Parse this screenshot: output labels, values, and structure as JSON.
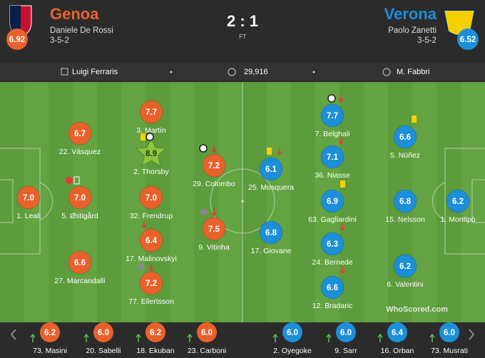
{
  "header": {
    "score": "2 : 1",
    "status": "FT",
    "home": {
      "name": "Genoa",
      "manager": "Daniele De Rossi",
      "formation": "3-5-2",
      "rating": "6.92"
    },
    "away": {
      "name": "Verona",
      "manager": "Paolo Zanetti",
      "formation": "3-5-2",
      "rating": "6.52"
    }
  },
  "info": {
    "venue": "Luigi Ferraris",
    "attendance": "29,916",
    "referee": "M. Fabbri"
  },
  "home_players": [
    {
      "label": "1. Leali",
      "rating": "7.0"
    },
    {
      "label": "22. Vásquez",
      "rating": "6.7"
    },
    {
      "label": "5. Østigård",
      "rating": "7.0"
    },
    {
      "label": "27. Marcandalli",
      "rating": "6.6"
    },
    {
      "label": "3. Martín",
      "rating": "7.7"
    },
    {
      "label": "2. Thorsby",
      "rating": "8.9"
    },
    {
      "label": "32. Frendrup",
      "rating": "7.0"
    },
    {
      "label": "17. Malinovskyi",
      "rating": "6.4"
    },
    {
      "label": "77. Ellertsson",
      "rating": "7.2"
    },
    {
      "label": "29. Colombo",
      "rating": "7.2"
    },
    {
      "label": "9. Vitinha",
      "rating": "7.5"
    }
  ],
  "away_players": [
    {
      "label": "1. Montipò",
      "rating": "6.2"
    },
    {
      "label": "5. Núñez",
      "rating": "6.6"
    },
    {
      "label": "15. Nelsson",
      "rating": "6.8"
    },
    {
      "label": "6. Valentini",
      "rating": "6.2"
    },
    {
      "label": "7. Belghali",
      "rating": "7.7"
    },
    {
      "label": "36. Niasse",
      "rating": "7.1"
    },
    {
      "label": "63. Gagliardini",
      "rating": "6.9"
    },
    {
      "label": "24. Bernede",
      "rating": "6.3"
    },
    {
      "label": "12. Bradaric",
      "rating": "6.6"
    },
    {
      "label": "25. Mosquera",
      "rating": "6.1"
    },
    {
      "label": "17. Giovane",
      "rating": "6.8"
    }
  ],
  "home_subs": [
    {
      "label": "73. Masini",
      "rating": "6.2"
    },
    {
      "label": "20. Sabelli",
      "rating": "6.0"
    },
    {
      "label": "18. Ekuban",
      "rating": "6.2"
    },
    {
      "label": "23. Carboni",
      "rating": "6.0"
    }
  ],
  "away_subs": [
    {
      "label": "2. Oyegoke",
      "rating": "6.0"
    },
    {
      "label": "9. Sarr",
      "rating": "6.0"
    },
    {
      "label": "16. Orban",
      "rating": "6.4"
    },
    {
      "label": "73. Musrati",
      "rating": "6.0"
    }
  ],
  "brand": "WhoScored.com"
}
